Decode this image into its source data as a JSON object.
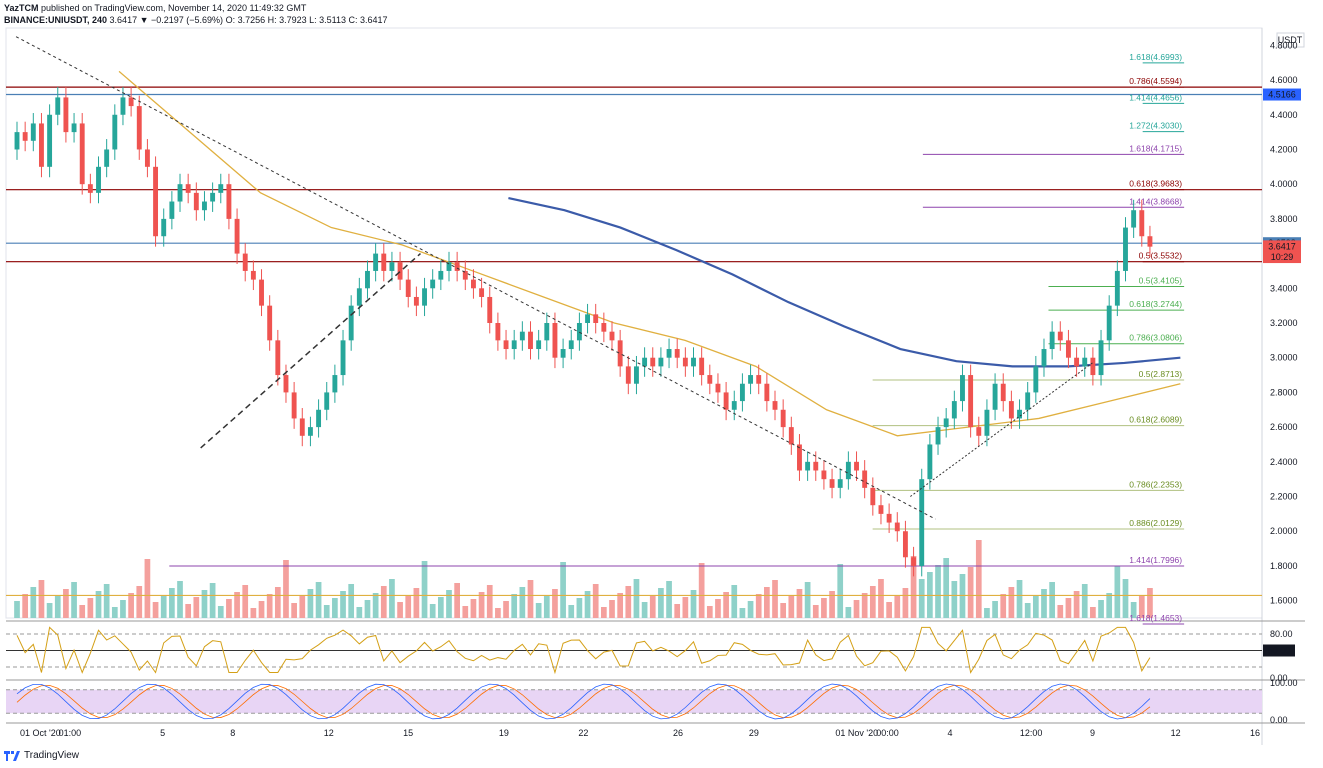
{
  "header": {
    "author": "YazTCM",
    "published": "published on TradingView.com, November 14, 2020 11:49:32 GMT",
    "symbol": "BINANCE:UNIUSDT, 240",
    "last": "3.6417",
    "change": "▼ −0.2197 (−5.69%)",
    "ohlc": "O: 3.7256  H: 3.7923  L: 3.5113  C: 3.6417"
  },
  "footer": {
    "brand": "TradingView",
    "logo_icon": "tradingview-logo-icon"
  },
  "colors": {
    "up": "#26a69a",
    "down": "#ef5350",
    "up_vol": "#8fd1c9",
    "down_vol": "#f4a09d",
    "ma_blue": "#3b5ba9",
    "ma_gold": "#e0b040",
    "red_line": "#8b0000",
    "blue_line": "#4a7fb5",
    "green_fib": "#4caf50",
    "purple_fib": "#8e44ad",
    "rsi": "#d4a017",
    "stoch_bg": "#e8d5f5",
    "stoch_k": "#2962ff",
    "stoch_d": "#ff6d00"
  },
  "chart_data": {
    "type": "candlestick",
    "price_unit": "USDT",
    "y_ticks": [
      "4.8000",
      "4.6000",
      "4.4000",
      "4.2000",
      "4.0000",
      "3.8000",
      "3.6000",
      "3.4000",
      "3.2000",
      "3.0000",
      "2.8000",
      "2.6000",
      "2.4000",
      "2.2000",
      "2.0000",
      "1.8000",
      "1.6000"
    ],
    "ylim": [
      1.5,
      4.9
    ],
    "x_ticks": [
      "01 Oct '20",
      "01:00",
      "5",
      "8",
      "12",
      "15",
      "19",
      "22",
      "26",
      "29",
      "01 Nov '20",
      "00:00",
      "4",
      "12:00",
      "9",
      "12",
      "16"
    ],
    "price_badges": [
      {
        "label": "4.5166",
        "value": 4.5166,
        "color": "#2962ff"
      },
      {
        "label": "3.6598",
        "value": 3.6598,
        "color": "#4a7fb5"
      },
      {
        "label": "3.6417",
        "value": 3.6417,
        "color": "#ef5350"
      },
      {
        "label": "10:29",
        "value": 3.58,
        "color": "#ef5350"
      }
    ],
    "horizontal_lines": [
      {
        "value": 4.5594,
        "color": "#8b0000"
      },
      {
        "value": 4.5166,
        "color": "#4a7fb5"
      },
      {
        "value": 3.9683,
        "color": "#8b0000"
      },
      {
        "value": 3.6598,
        "color": "#4a7fb5"
      },
      {
        "value": 3.5532,
        "color": "#8b0000"
      },
      {
        "value": 1.63,
        "color": "#e0b040"
      }
    ],
    "fib_levels": [
      {
        "label": "1.618(4.6993)",
        "value": 4.6993,
        "color": "#26a69a",
        "start": 0.905
      },
      {
        "label": "0.786(4.5594)",
        "value": 4.5594,
        "color": "#8b0000",
        "start": 0.905
      },
      {
        "label": "1.414(4.4656)",
        "value": 4.4656,
        "color": "#26a69a",
        "start": 0.905
      },
      {
        "label": "1.272(4.3030)",
        "value": 4.303,
        "color": "#26a69a",
        "start": 0.905
      },
      {
        "label": "1.618(4.1715)",
        "value": 4.1715,
        "color": "#8e44ad",
        "start": 0.73
      },
      {
        "label": "0.618(3.9683)",
        "value": 3.9683,
        "color": "#8b0000",
        "start": 0.905
      },
      {
        "label": "1.414(3.8668)",
        "value": 3.8668,
        "color": "#8e44ad",
        "start": 0.73
      },
      {
        "label": "0.5(3.5532)",
        "value": 3.5532,
        "color": "#8b0000",
        "start": 0.905
      },
      {
        "label": "0.5(3.4105)",
        "value": 3.4105,
        "color": "#4caf50",
        "start": 0.83
      },
      {
        "label": "0.618(3.2744)",
        "value": 3.2744,
        "color": "#4caf50",
        "start": 0.83
      },
      {
        "label": "0.786(3.0806)",
        "value": 3.0806,
        "color": "#4caf50",
        "start": 0.83
      },
      {
        "label": "0.5(2.8713)",
        "value": 2.8713,
        "color": "#b0c080",
        "start": 0.69
      },
      {
        "label": "0.618(2.6089)",
        "value": 2.6089,
        "color": "#b0c080",
        "start": 0.69
      },
      {
        "label": "0.786(2.2353)",
        "value": 2.2353,
        "color": "#b0c080",
        "start": 0.69
      },
      {
        "label": "0.886(2.0129)",
        "value": 2.0129,
        "color": "#b0c080",
        "start": 0.69
      },
      {
        "label": "1.414(1.7996)",
        "value": 1.7996,
        "color": "#8e44ad",
        "start": 0.13
      },
      {
        "label": "1.618(1.4653)",
        "value": 1.4653,
        "color": "#8e44ad",
        "start": 0.905
      }
    ],
    "candles": [
      4.2,
      4.3,
      4.25,
      4.35,
      4.1,
      4.4,
      4.5,
      4.3,
      4.35,
      4.0,
      3.95,
      4.1,
      4.2,
      4.4,
      4.5,
      4.45,
      4.2,
      4.1,
      3.7,
      3.8,
      3.9,
      4.0,
      3.95,
      3.85,
      3.9,
      3.95,
      4.0,
      3.8,
      3.6,
      3.5,
      3.45,
      3.3,
      3.1,
      2.9,
      2.8,
      2.65,
      2.55,
      2.6,
      2.7,
      2.8,
      2.9,
      3.1,
      3.3,
      3.4,
      3.5,
      3.6,
      3.5,
      3.55,
      3.45,
      3.35,
      3.3,
      3.4,
      3.45,
      3.5,
      3.55,
      3.5,
      3.45,
      3.4,
      3.35,
      3.2,
      3.1,
      3.05,
      3.1,
      3.15,
      3.05,
      3.1,
      3.2,
      3.0,
      3.05,
      3.1,
      3.2,
      3.25,
      3.2,
      3.15,
      3.1,
      2.95,
      2.85,
      2.95,
      3.0,
      2.95,
      3.0,
      3.05,
      3.0,
      2.95,
      3.0,
      2.9,
      2.85,
      2.8,
      2.7,
      2.75,
      2.85,
      2.9,
      2.85,
      2.75,
      2.7,
      2.6,
      2.5,
      2.35,
      2.4,
      2.35,
      2.3,
      2.25,
      2.3,
      2.4,
      2.35,
      2.25,
      2.15,
      2.1,
      2.05,
      2.0,
      1.85,
      1.8,
      2.3,
      2.5,
      2.6,
      2.65,
      2.75,
      2.9,
      2.6,
      2.55,
      2.7,
      2.85,
      2.75,
      2.65,
      2.7,
      2.8,
      2.95,
      3.05,
      3.15,
      3.1,
      3.0,
      2.95,
      3.0,
      2.9,
      3.1,
      3.3,
      3.5,
      3.75,
      3.85,
      3.7,
      3.64
    ],
    "ma_blue": {
      "start": 0.4,
      "values": [
        3.92,
        3.85,
        3.75,
        3.62,
        3.48,
        3.32,
        3.18,
        3.05,
        2.98,
        2.95,
        2.95,
        2.97,
        3.0
      ]
    },
    "ma_gold": {
      "start": 0.09,
      "values": [
        4.65,
        4.3,
        3.95,
        3.75,
        3.65,
        3.5,
        3.35,
        3.2,
        3.1,
        2.95,
        2.7,
        2.55,
        2.6,
        2.65,
        2.75,
        2.85
      ]
    },
    "trendlines": [
      {
        "style": "dashed-dotted",
        "from": [
          0.008,
          4.85
        ],
        "to": [
          0.74,
          2.07
        ]
      },
      {
        "style": "dashed",
        "from": [
          0.155,
          2.48
        ],
        "to": [
          0.33,
          3.6
        ]
      },
      {
        "style": "dotted",
        "from": [
          0.72,
          2.2
        ],
        "to": [
          0.865,
          2.97
        ]
      }
    ],
    "rsi": {
      "levels": [
        "80.00",
        "50.00",
        "0.00"
      ],
      "badge": "50.00"
    },
    "stoch": {
      "levels": [
        "100.00",
        "0.00"
      ]
    }
  }
}
